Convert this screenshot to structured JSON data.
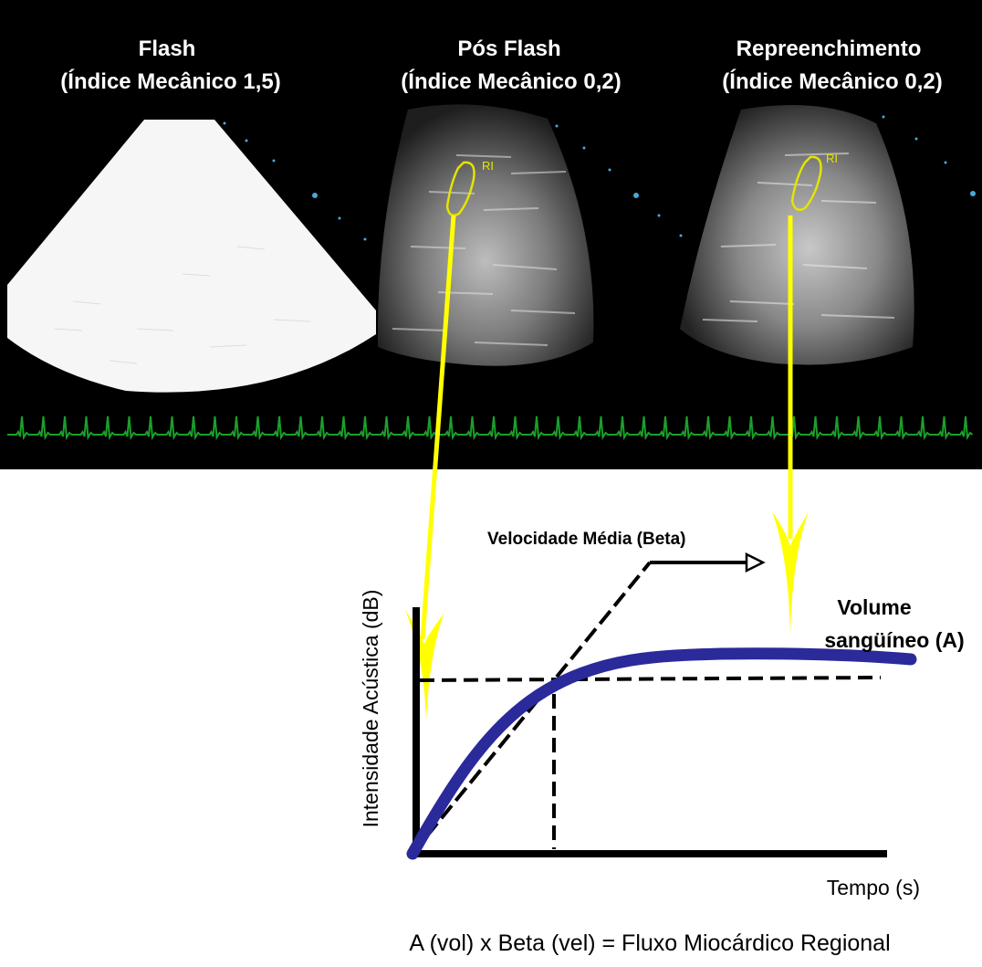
{
  "panels": [
    {
      "title_line1": "Flash",
      "title_line2": "(Índice Mecânico 1,5)"
    },
    {
      "title_line1": "Pós Flash",
      "title_line2": "(Índice Mecânico 0,2)",
      "roi_label": "RI"
    },
    {
      "title_line1": "Repreenchimento",
      "title_line2": "(Índice Mecânico 0,2)",
      "roi_label": "RI"
    }
  ],
  "graph": {
    "y_axis_label": "Intensidade Acústica (dB)",
    "x_axis_label": "Tempo (s)",
    "beta_label": "Velocidade Média (Beta)",
    "volume_label_line1": "Volume",
    "volume_label_line2": "sangüíneo (A)"
  },
  "formula": "A (vol) x Beta (vel) = Fluxo Miocárdico Regional",
  "colors": {
    "background_top": "#000000",
    "ecg_trace": "#1aa02a",
    "roi_outline": "#e4e400",
    "arrow": "#ffff00",
    "curve": "#2a2a9a"
  }
}
